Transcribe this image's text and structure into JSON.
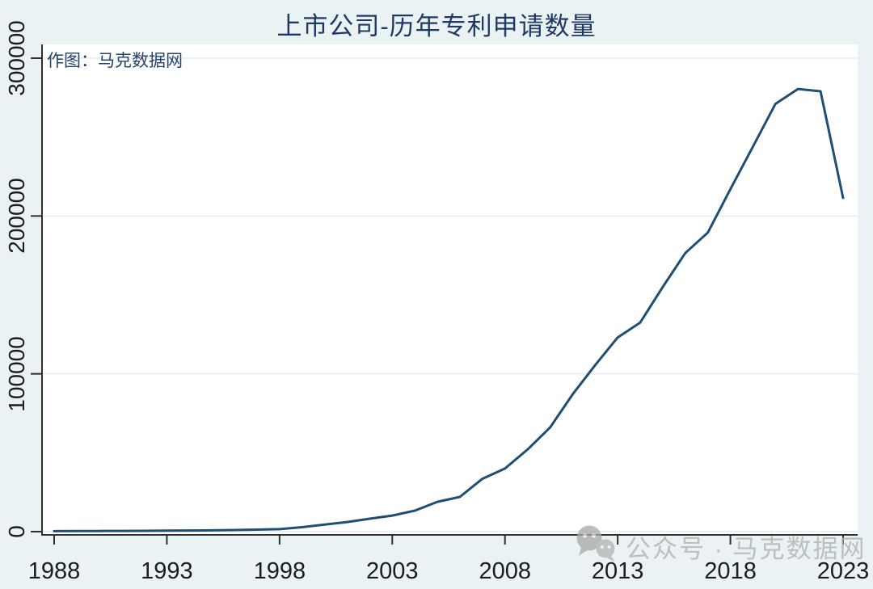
{
  "page": {
    "background": "#eaf2f3"
  },
  "header": {
    "title": "上市公司-历年专利申请数量"
  },
  "plot": {
    "annotation": "作图：马克数据网"
  },
  "watermark": {
    "icon": "wechat-icon",
    "text": "公众号 · 马克数据网"
  },
  "chart_data": {
    "type": "line",
    "title": "上市公司-历年专利申请数量",
    "x": [
      1988,
      1989,
      1990,
      1991,
      1992,
      1993,
      1994,
      1995,
      1996,
      1997,
      1998,
      1999,
      2000,
      2001,
      2002,
      2003,
      2004,
      2005,
      2006,
      2007,
      2008,
      2009,
      2010,
      2011,
      2012,
      2013,
      2014,
      2015,
      2016,
      2017,
      2018,
      2019,
      2020,
      2021,
      2022,
      2023
    ],
    "series": [
      {
        "name": "专利申请数量",
        "values": [
          300,
          350,
          400,
          450,
          500,
          600,
          700,
          800,
          1000,
          1300,
          1600,
          2800,
          4500,
          6100,
          8200,
          10200,
          13300,
          18900,
          22000,
          33500,
          40000,
          52000,
          66000,
          87000,
          105500,
          123000,
          132500,
          155000,
          176500,
          189500,
          217000,
          244000,
          271000,
          280500,
          279000,
          211500
        ]
      }
    ],
    "xlabel": "",
    "ylabel": "",
    "xlim": [
      1988,
      2023
    ],
    "ylim": [
      0,
      300000
    ],
    "xticks": [
      1988,
      1993,
      1998,
      2003,
      2008,
      2013,
      2018,
      2023
    ],
    "xtick_labels": [
      "1988",
      "1993",
      "1998",
      "2003",
      "2008",
      "2013",
      "2018",
      "2023"
    ],
    "yticks": [
      0,
      100000,
      200000,
      300000
    ],
    "ytick_labels": [
      "0",
      "100000",
      "200000",
      "300000"
    ],
    "grid": true,
    "legend": false,
    "line_color": "#204e73",
    "grid_color": "#e2edf2",
    "axis_color": "#2f2f2f",
    "tick_color": "#2f2f2f",
    "plot_background": "#ffffff"
  }
}
